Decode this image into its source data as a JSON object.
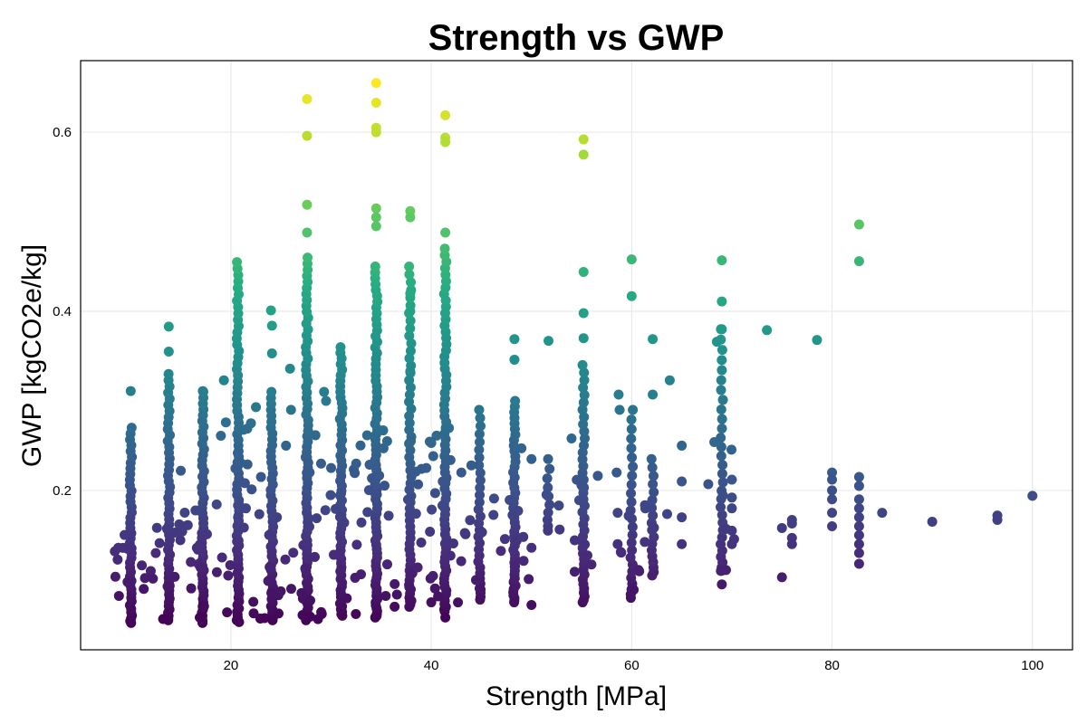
{
  "chart_data": {
    "type": "scatter",
    "title": "Strength vs GWP",
    "xlabel": "Strength [MPa]",
    "ylabel": "GWP [kgCO2e/kg]",
    "xlim": [
      5,
      104
    ],
    "ylim": [
      0.022,
      0.68
    ],
    "xticks": [
      20,
      40,
      60,
      80,
      100
    ],
    "yticks": [
      0.2,
      0.4,
      0.6
    ],
    "grid": true,
    "legend": "none",
    "colormap": "viridis",
    "color_by": "y",
    "color_range": [
      0.05,
      0.655
    ],
    "colors": {
      "colormap_low": "#440154",
      "colormap_mid": "#21908d",
      "colormap_high": "#fde725",
      "grid": "#e6e6e6",
      "frame": "#000000"
    },
    "columns": [
      {
        "x": 10.0,
        "ymin": 0.052,
        "ymax": 0.27,
        "n": 42
      },
      {
        "x": 13.8,
        "ymin": 0.055,
        "ymax": 0.33,
        "n": 50
      },
      {
        "x": 17.2,
        "ymin": 0.052,
        "ymax": 0.31,
        "n": 50
      },
      {
        "x": 20.7,
        "ymin": 0.053,
        "ymax": 0.455,
        "n": 70
      },
      {
        "x": 24.1,
        "ymin": 0.055,
        "ymax": 0.31,
        "n": 48
      },
      {
        "x": 27.6,
        "ymin": 0.055,
        "ymax": 0.46,
        "n": 75
      },
      {
        "x": 31.0,
        "ymin": 0.06,
        "ymax": 0.36,
        "n": 60
      },
      {
        "x": 34.5,
        "ymin": 0.058,
        "ymax": 0.45,
        "n": 75
      },
      {
        "x": 37.9,
        "ymin": 0.07,
        "ymax": 0.45,
        "n": 55
      },
      {
        "x": 41.4,
        "ymin": 0.065,
        "ymax": 0.47,
        "n": 70
      },
      {
        "x": 44.8,
        "ymin": 0.078,
        "ymax": 0.29,
        "n": 30
      },
      {
        "x": 48.3,
        "ymin": 0.075,
        "ymax": 0.3,
        "n": 45
      },
      {
        "x": 51.7,
        "ymin": 0.155,
        "ymax": 0.235,
        "n": 10
      },
      {
        "x": 55.2,
        "ymin": 0.075,
        "ymax": 0.34,
        "n": 40
      },
      {
        "x": 60.0,
        "ymin": 0.08,
        "ymax": 0.29,
        "n": 25
      },
      {
        "x": 62.1,
        "ymin": 0.105,
        "ymax": 0.235,
        "n": 18
      },
      {
        "x": 69.0,
        "ymin": 0.11,
        "ymax": 0.38,
        "n": 30
      }
    ],
    "points": [
      {
        "x": 10.0,
        "y": 0.311
      },
      {
        "x": 11.3,
        "y": 0.09
      },
      {
        "x": 12.0,
        "y": 0.11
      },
      {
        "x": 12.5,
        "y": 0.13
      },
      {
        "x": 13.8,
        "y": 0.383
      },
      {
        "x": 13.8,
        "y": 0.355
      },
      {
        "x": 15.0,
        "y": 0.222
      },
      {
        "x": 15.2,
        "y": 0.16
      },
      {
        "x": 16.0,
        "y": 0.12
      },
      {
        "x": 17.2,
        "y": 0.311
      },
      {
        "x": 19.0,
        "y": 0.261
      },
      {
        "x": 19.3,
        "y": 0.323
      },
      {
        "x": 19.5,
        "y": 0.276
      },
      {
        "x": 21.5,
        "y": 0.18
      },
      {
        "x": 22.0,
        "y": 0.275
      },
      {
        "x": 22.5,
        "y": 0.293
      },
      {
        "x": 23.0,
        "y": 0.215
      },
      {
        "x": 24.0,
        "y": 0.401
      },
      {
        "x": 24.1,
        "y": 0.384
      },
      {
        "x": 24.1,
        "y": 0.353
      },
      {
        "x": 25.5,
        "y": 0.25
      },
      {
        "x": 25.9,
        "y": 0.336
      },
      {
        "x": 26.0,
        "y": 0.29
      },
      {
        "x": 27.6,
        "y": 0.637
      },
      {
        "x": 27.6,
        "y": 0.596
      },
      {
        "x": 27.6,
        "y": 0.519
      },
      {
        "x": 27.6,
        "y": 0.488
      },
      {
        "x": 29.0,
        "y": 0.23
      },
      {
        "x": 29.3,
        "y": 0.31
      },
      {
        "x": 29.5,
        "y": 0.3
      },
      {
        "x": 30.0,
        "y": 0.225
      },
      {
        "x": 32.5,
        "y": 0.23
      },
      {
        "x": 34.5,
        "y": 0.655
      },
      {
        "x": 34.5,
        "y": 0.633
      },
      {
        "x": 34.5,
        "y": 0.605
      },
      {
        "x": 34.5,
        "y": 0.6
      },
      {
        "x": 34.5,
        "y": 0.515
      },
      {
        "x": 34.5,
        "y": 0.505
      },
      {
        "x": 34.5,
        "y": 0.495
      },
      {
        "x": 37.9,
        "y": 0.512
      },
      {
        "x": 37.9,
        "y": 0.505
      },
      {
        "x": 37.9,
        "y": 0.42
      },
      {
        "x": 37.9,
        "y": 0.4
      },
      {
        "x": 37.9,
        "y": 0.333
      },
      {
        "x": 40.0,
        "y": 0.253
      },
      {
        "x": 39.5,
        "y": 0.225
      },
      {
        "x": 40.0,
        "y": 0.075
      },
      {
        "x": 41.4,
        "y": 0.619
      },
      {
        "x": 41.4,
        "y": 0.594
      },
      {
        "x": 41.4,
        "y": 0.589
      },
      {
        "x": 41.4,
        "y": 0.488
      },
      {
        "x": 41.4,
        "y": 0.058
      },
      {
        "x": 43.0,
        "y": 0.22
      },
      {
        "x": 44.0,
        "y": 0.228
      },
      {
        "x": 48.3,
        "y": 0.369
      },
      {
        "x": 48.3,
        "y": 0.346
      },
      {
        "x": 49.0,
        "y": 0.247
      },
      {
        "x": 50.0,
        "y": 0.235
      },
      {
        "x": 50.0,
        "y": 0.072
      },
      {
        "x": 50.0,
        "y": 0.136
      },
      {
        "x": 51.7,
        "y": 0.367
      },
      {
        "x": 54.0,
        "y": 0.258
      },
      {
        "x": 55.2,
        "y": 0.592
      },
      {
        "x": 55.2,
        "y": 0.575
      },
      {
        "x": 55.2,
        "y": 0.444
      },
      {
        "x": 55.2,
        "y": 0.398
      },
      {
        "x": 55.2,
        "y": 0.37
      },
      {
        "x": 58.7,
        "y": 0.307
      },
      {
        "x": 58.8,
        "y": 0.29
      },
      {
        "x": 58.5,
        "y": 0.22
      },
      {
        "x": 58.6,
        "y": 0.175
      },
      {
        "x": 58.6,
        "y": 0.14
      },
      {
        "x": 60.0,
        "y": 0.458
      },
      {
        "x": 60.0,
        "y": 0.417
      },
      {
        "x": 62.1,
        "y": 0.369
      },
      {
        "x": 62.1,
        "y": 0.307
      },
      {
        "x": 63.8,
        "y": 0.323
      },
      {
        "x": 65.0,
        "y": 0.25
      },
      {
        "x": 65.0,
        "y": 0.21
      },
      {
        "x": 65.0,
        "y": 0.17
      },
      {
        "x": 65.0,
        "y": 0.14
      },
      {
        "x": 68.5,
        "y": 0.366
      },
      {
        "x": 69.0,
        "y": 0.457
      },
      {
        "x": 69.0,
        "y": 0.411
      },
      {
        "x": 69.0,
        "y": 0.38
      },
      {
        "x": 69.0,
        "y": 0.095
      },
      {
        "x": 70.0,
        "y": 0.212
      },
      {
        "x": 70.0,
        "y": 0.192
      },
      {
        "x": 70.0,
        "y": 0.18
      },
      {
        "x": 70.0,
        "y": 0.155
      },
      {
        "x": 70.0,
        "y": 0.14
      },
      {
        "x": 73.5,
        "y": 0.379
      },
      {
        "x": 75.0,
        "y": 0.158
      },
      {
        "x": 75.0,
        "y": 0.103
      },
      {
        "x": 76.0,
        "y": 0.167
      },
      {
        "x": 76.0,
        "y": 0.163
      },
      {
        "x": 76.0,
        "y": 0.147
      },
      {
        "x": 76.0,
        "y": 0.14
      },
      {
        "x": 78.5,
        "y": 0.368
      },
      {
        "x": 80.0,
        "y": 0.22
      },
      {
        "x": 80.0,
        "y": 0.212
      },
      {
        "x": 80.0,
        "y": 0.2
      },
      {
        "x": 80.0,
        "y": 0.19
      },
      {
        "x": 80.0,
        "y": 0.175
      },
      {
        "x": 80.0,
        "y": 0.16
      },
      {
        "x": 82.7,
        "y": 0.497
      },
      {
        "x": 82.7,
        "y": 0.456
      },
      {
        "x": 82.7,
        "y": 0.215
      },
      {
        "x": 82.7,
        "y": 0.205
      },
      {
        "x": 82.7,
        "y": 0.19
      },
      {
        "x": 82.7,
        "y": 0.18
      },
      {
        "x": 82.7,
        "y": 0.17
      },
      {
        "x": 82.7,
        "y": 0.16
      },
      {
        "x": 82.7,
        "y": 0.15
      },
      {
        "x": 82.7,
        "y": 0.14
      },
      {
        "x": 82.7,
        "y": 0.13
      },
      {
        "x": 82.7,
        "y": 0.118
      },
      {
        "x": 85.0,
        "y": 0.175
      },
      {
        "x": 90.0,
        "y": 0.165
      },
      {
        "x": 96.5,
        "y": 0.172
      },
      {
        "x": 96.5,
        "y": 0.167
      },
      {
        "x": 100.0,
        "y": 0.194
      }
    ]
  }
}
